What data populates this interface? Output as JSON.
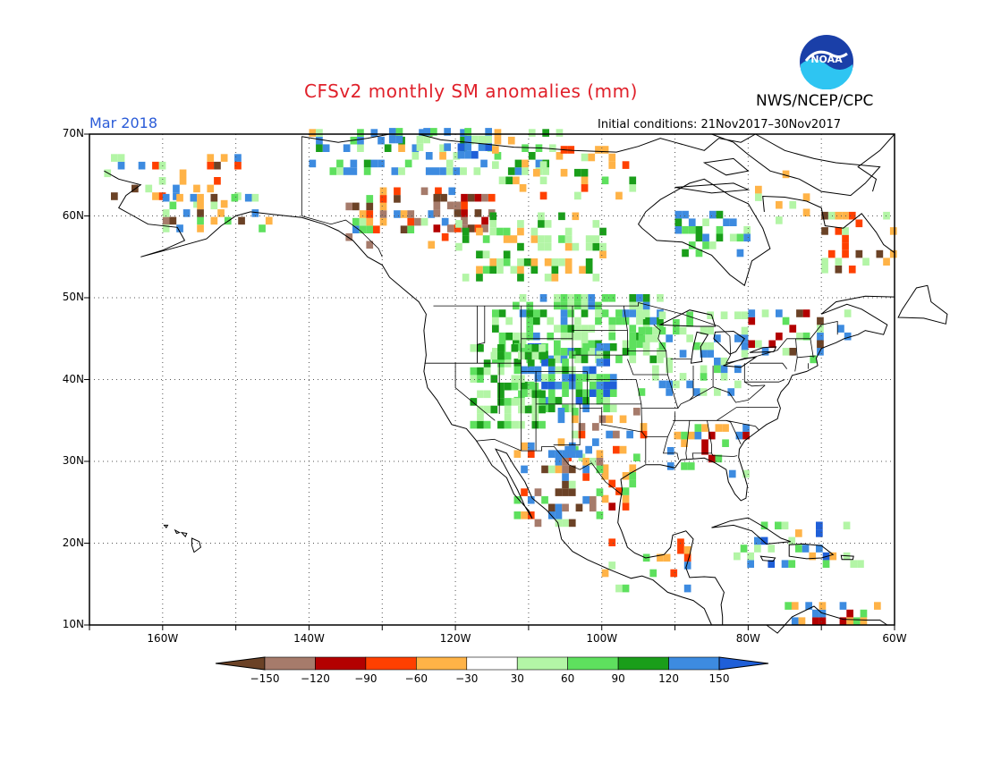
{
  "title": "CFSv2 monthly SM anomalies (mm)",
  "valid_label": "Mar 2018",
  "initial_conditions": "Initial conditions: 21Nov2017–30Nov2017",
  "organization": "NWS/NCEP/CPC",
  "logo_text": "NOAA",
  "lat_labels": [
    "70N",
    "60N",
    "50N",
    "40N",
    "30N",
    "20N",
    "10N"
  ],
  "lon_labels": [
    "160W",
    "140W",
    "120W",
    "100W",
    "80W",
    "60W"
  ],
  "colorbar": {
    "labels": [
      "−150",
      "−120",
      "−90",
      "−60",
      "−30",
      "30",
      "60",
      "90",
      "120",
      "150"
    ],
    "colors": [
      "#6b4226",
      "#a67b6b",
      "#b30000",
      "#ff4000",
      "#ffb347",
      "#ffffff",
      "#b3f5a6",
      "#5ee05e",
      "#1a9e1a",
      "#3d8be0",
      "#1f5fd8"
    ]
  }
}
